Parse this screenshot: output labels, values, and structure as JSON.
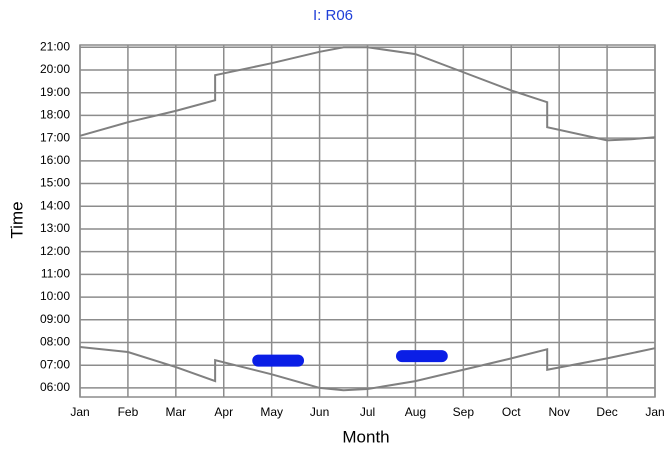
{
  "chart_data": {
    "type": "line",
    "title": "I: R06",
    "xlabel": "Month",
    "ylabel": "Time",
    "xlim": [
      0,
      12
    ],
    "xticks": [
      {
        "value": 0,
        "label": "Jan"
      },
      {
        "value": 1,
        "label": "Feb"
      },
      {
        "value": 2,
        "label": "Mar"
      },
      {
        "value": 3,
        "label": "Apr"
      },
      {
        "value": 4,
        "label": "May"
      },
      {
        "value": 5,
        "label": "Jun"
      },
      {
        "value": 6,
        "label": "Jul"
      },
      {
        "value": 7,
        "label": "Aug"
      },
      {
        "value": 8,
        "label": "Sep"
      },
      {
        "value": 9,
        "label": "Oct"
      },
      {
        "value": 10,
        "label": "Nov"
      },
      {
        "value": 11,
        "label": "Dec"
      },
      {
        "value": 12,
        "label": "Jan"
      }
    ],
    "ylim": [
      5.6,
      21.1
    ],
    "yticks": [
      {
        "value": 6,
        "label": "06:00"
      },
      {
        "value": 7,
        "label": "07:00"
      },
      {
        "value": 8,
        "label": "08:00"
      },
      {
        "value": 9,
        "label": "09:00"
      },
      {
        "value": 10,
        "label": "10:00"
      },
      {
        "value": 11,
        "label": "11:00"
      },
      {
        "value": 12,
        "label": "12:00"
      },
      {
        "value": 13,
        "label": "13:00"
      },
      {
        "value": 14,
        "label": "14:00"
      },
      {
        "value": 15,
        "label": "15:00"
      },
      {
        "value": 16,
        "label": "16:00"
      },
      {
        "value": 17,
        "label": "17:00"
      },
      {
        "value": 18,
        "label": "18:00"
      },
      {
        "value": 19,
        "label": "19:00"
      },
      {
        "value": 20,
        "label": "20:00"
      },
      {
        "value": 21,
        "label": "21:00"
      }
    ],
    "grid": true,
    "series": [
      {
        "color": "#808080",
        "x": [
          0,
          1,
          2,
          2.82,
          2.82,
          4,
          5,
          5.5,
          6,
          7,
          8,
          9,
          9.75,
          9.75,
          11,
          11.5,
          12
        ],
        "values": [
          17.1,
          17.7,
          18.2,
          18.67,
          19.77,
          20.3,
          20.8,
          21.0,
          21.0,
          20.7,
          19.9,
          19.1,
          18.58,
          17.48,
          16.9,
          16.95,
          17.04
        ]
      },
      {
        "color": "#808080",
        "x": [
          0,
          1,
          2,
          2.82,
          2.82,
          4,
          5,
          5.5,
          6,
          7,
          8,
          9,
          9.75,
          9.75,
          11,
          12
        ],
        "values": [
          7.8,
          7.58,
          6.92,
          6.3,
          7.22,
          6.6,
          6.0,
          5.9,
          5.95,
          6.3,
          6.8,
          7.3,
          7.7,
          6.8,
          7.3,
          7.75
        ]
      }
    ],
    "highlights": [
      {
        "start": 3.72,
        "end": 4.55,
        "value": 7.2,
        "color": "#0a1ee6"
      },
      {
        "start": 6.72,
        "end": 7.55,
        "value": 7.4,
        "color": "#0a1ee6"
      }
    ]
  }
}
